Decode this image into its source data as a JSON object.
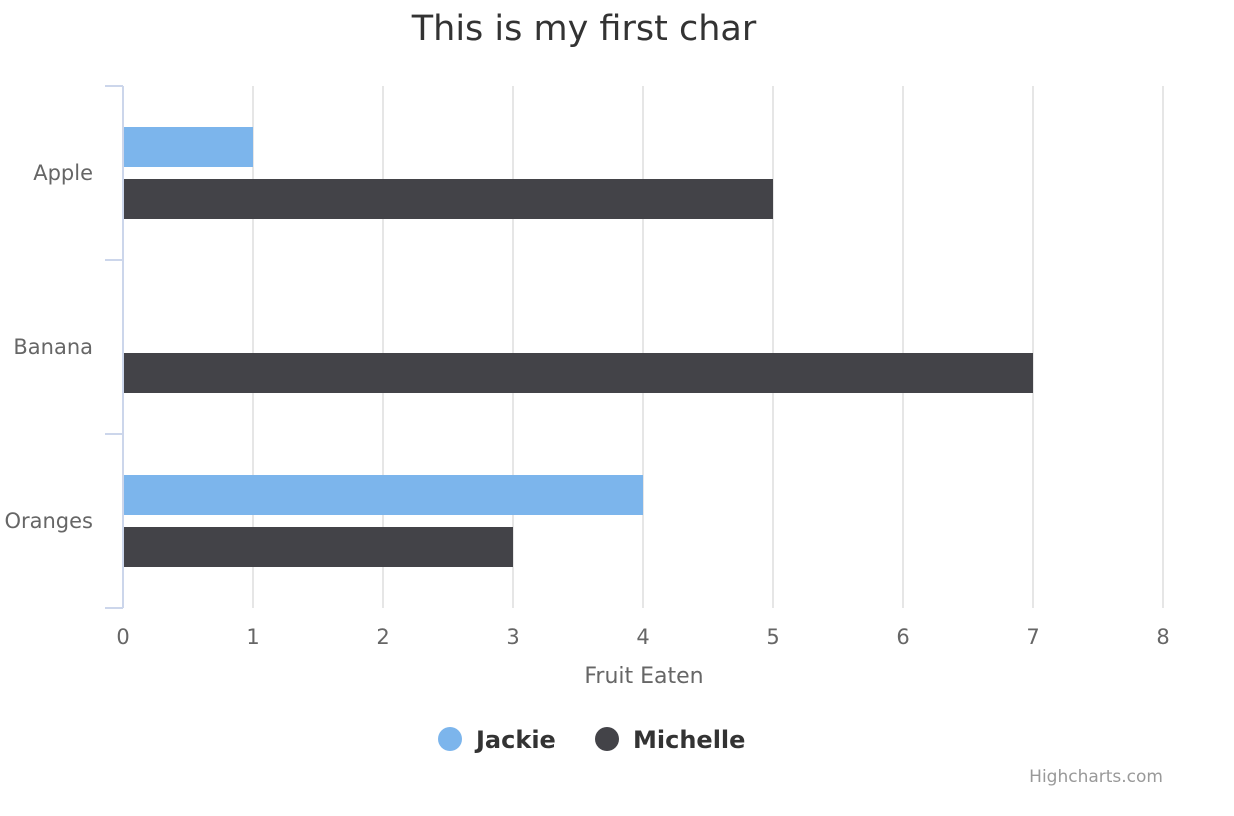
{
  "chart_data": {
    "type": "bar",
    "orientation": "horizontal",
    "title": "This is my first char",
    "categories": [
      "Apple",
      "Banana",
      "Oranges"
    ],
    "xlabel": "",
    "ylabel": "Fruit Eaten",
    "value_axis_range": [
      0,
      8
    ],
    "ticks": [
      0,
      1,
      2,
      3,
      4,
      5,
      6,
      7,
      8
    ],
    "grid": true,
    "legend_position": "bottom-center",
    "series": [
      {
        "name": "Jackie",
        "color": "#7cb5ec",
        "values": [
          1,
          null,
          4
        ]
      },
      {
        "name": "Michelle",
        "color": "#434348",
        "values": [
          5,
          7,
          3
        ]
      }
    ]
  },
  "credits": "Highcharts.com",
  "colors": {
    "grid": "#e6e6e6",
    "axis_line": "#ccd6eb"
  }
}
